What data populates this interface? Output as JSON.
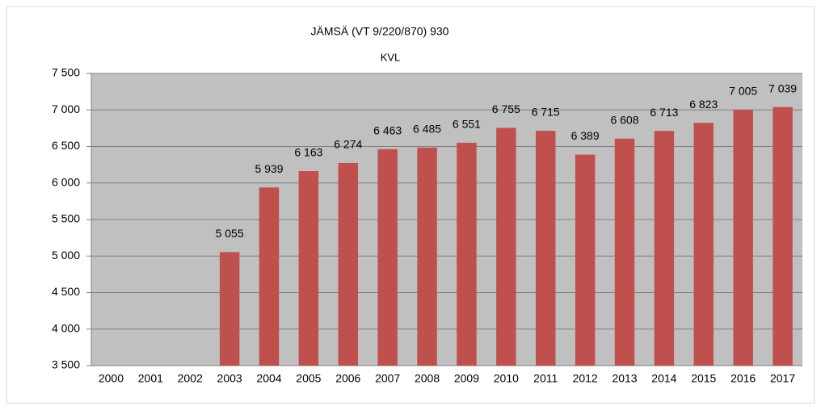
{
  "chart_data": {
    "type": "bar",
    "title": "JÄMSÄ (VT 9/220/870) 930",
    "subtitle": "KVL",
    "categories": [
      "2000",
      "2001",
      "2002",
      "2003",
      "2004",
      "2005",
      "2006",
      "2007",
      "2008",
      "2009",
      "2010",
      "2011",
      "2012",
      "2013",
      "2014",
      "2015",
      "2016",
      "2017"
    ],
    "values": [
      null,
      null,
      null,
      5055,
      5939,
      6163,
      6274,
      6463,
      6485,
      6551,
      6755,
      6715,
      6389,
      6608,
      6713,
      6823,
      7005,
      7039
    ],
    "value_labels": [
      null,
      null,
      null,
      "5 055",
      "5 939",
      "6 163",
      "6 274",
      "6 463",
      "6 485",
      "6 551",
      "6 755",
      "6 715",
      "6 389",
      "6 608",
      "6 713",
      "6 823",
      "7 005",
      "7 039"
    ],
    "color": "#c0504d",
    "ylim": [
      3500,
      7500
    ],
    "yticks": [
      {
        "value": 3500,
        "label": "3 500"
      },
      {
        "value": 4000,
        "label": "4 000"
      },
      {
        "value": 4500,
        "label": "4 500"
      },
      {
        "value": 5000,
        "label": "5 000"
      },
      {
        "value": 5500,
        "label": "5 500"
      },
      {
        "value": 6000,
        "label": "6 000"
      },
      {
        "value": 6500,
        "label": "6 500"
      },
      {
        "value": 7000,
        "label": "7 000"
      },
      {
        "value": 7500,
        "label": "7 500"
      }
    ],
    "grid": true
  }
}
